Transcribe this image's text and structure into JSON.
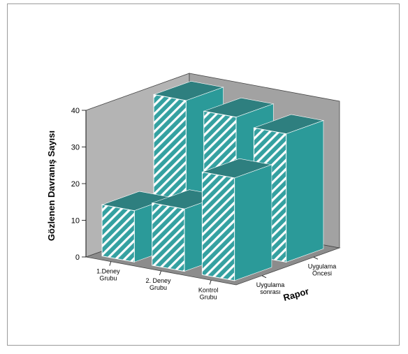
{
  "chart_data": {
    "type": "bar",
    "subtype": "3d-clustered",
    "ylabel": "Gözlenen Davranış Sayısı",
    "zlabel": "Rapor",
    "ylim": [
      0,
      40
    ],
    "yticks": [
      "0",
      "10",
      "20",
      "30",
      "40"
    ],
    "categories": [
      [
        "1.Deney",
        "Grubu"
      ],
      [
        "2. Deney",
        "Grubu"
      ],
      [
        "Kontrol",
        "Grubu"
      ]
    ],
    "series": [
      {
        "name": [
          "Uygulama",
          "sonrası"
        ],
        "values": [
          14,
          17,
          28
        ]
      },
      {
        "name": [
          "Uygulama",
          "Öncesi"
        ],
        "values": [
          39,
          37,
          35
        ]
      }
    ],
    "colors": {
      "back_wall": "#b4b4b4",
      "side_wall": "#a2a2a2",
      "floor": "#8c8c8c",
      "bar_front": "#35a1a1",
      "bar_side": "#2b9a99",
      "bar_top": "#2e7f7f",
      "hatch": "#ffffff"
    },
    "grid": false
  }
}
